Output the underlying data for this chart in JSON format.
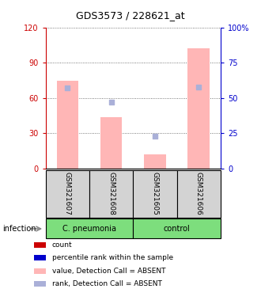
{
  "title": "GDS3573 / 228621_at",
  "samples": [
    "GSM321607",
    "GSM321608",
    "GSM321605",
    "GSM321606"
  ],
  "bar_values_pink": [
    75,
    44,
    12,
    102
  ],
  "dot_values_blue_pct": [
    57,
    47,
    23,
    58
  ],
  "ylim_left": [
    0,
    120
  ],
  "ylim_right": [
    0,
    100
  ],
  "yticks_left": [
    0,
    30,
    60,
    90,
    120
  ],
  "yticks_right": [
    0,
    25,
    50,
    75,
    100
  ],
  "yticklabels_left": [
    "0",
    "30",
    "60",
    "90",
    "120"
  ],
  "yticklabels_right": [
    "0",
    "25",
    "50",
    "75",
    "100%"
  ],
  "left_axis_color": "#cc0000",
  "right_axis_color": "#0000cc",
  "bar_color_pink": "#ffb6b6",
  "dot_color_blue": "#aab0d8",
  "group1_label": "C. pneumonia",
  "group2_label": "control",
  "group1_color": "#7dde7d",
  "group2_color": "#7dde7d",
  "infection_label": "infection",
  "legend_items": [
    {
      "color": "#cc0000",
      "label": "count"
    },
    {
      "color": "#0000cc",
      "label": "percentile rank within the sample"
    },
    {
      "color": "#ffb6b6",
      "label": "value, Detection Call = ABSENT"
    },
    {
      "color": "#aab0d8",
      "label": "rank, Detection Call = ABSENT"
    }
  ],
  "grid_color": "#555555",
  "bg_color": "#ffffff",
  "sample_box_color": "#d3d3d3"
}
